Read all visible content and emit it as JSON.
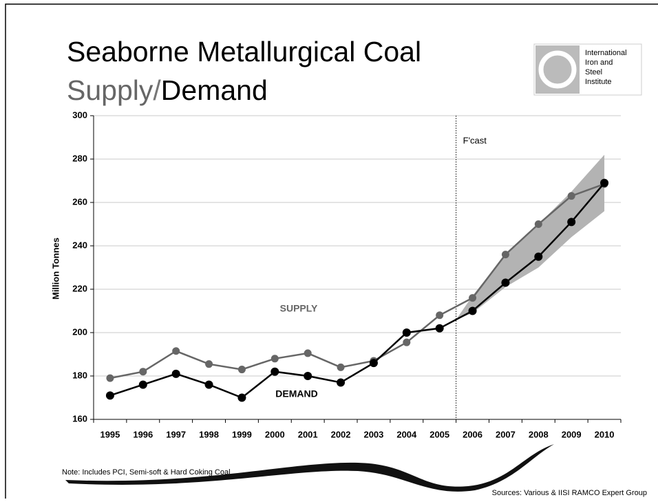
{
  "chart_data": {
    "type": "line",
    "title": "Seaborne Metallurgical Coal",
    "subtitle": {
      "supply": "Supply",
      "slash": "/",
      "demand": "Demand"
    },
    "y_label": "Million Tonnes",
    "categories": [
      "1995",
      "1996",
      "1997",
      "1998",
      "1999",
      "2000",
      "2001",
      "2002",
      "2003",
      "2004",
      "2005",
      "2006",
      "2007",
      "2008",
      "2009",
      "2010"
    ],
    "series": [
      {
        "name": "SUPPLY",
        "color": "#666666",
        "values": [
          179,
          182,
          191.5,
          185.5,
          183,
          188,
          190.5,
          184,
          187,
          195.5,
          208,
          216,
          236,
          250,
          263,
          268.5
        ]
      },
      {
        "name": "DEMAND",
        "color": "#000000",
        "values": [
          171,
          176,
          181,
          176,
          170,
          182,
          180,
          177,
          186,
          200,
          202,
          210,
          223,
          235,
          251,
          269
        ]
      }
    ],
    "forecast_band": {
      "color": "#b3b3b3",
      "upper": [
        null,
        null,
        null,
        null,
        null,
        null,
        null,
        null,
        null,
        null,
        null,
        217,
        236,
        250,
        265,
        282
      ],
      "lower": [
        null,
        null,
        null,
        null,
        null,
        null,
        null,
        null,
        null,
        null,
        null,
        209,
        221,
        230,
        244,
        256
      ]
    },
    "forecast_label": "F'cast",
    "ylim": [
      160,
      300
    ],
    "yticks": [
      160,
      180,
      200,
      220,
      240,
      260,
      280,
      300
    ],
    "grid": true,
    "logo": [
      "International",
      "Iron and",
      "Steel",
      "Institute"
    ],
    "note": "Note: Includes PCI, Semi-soft & Hard Coking Coal",
    "sources": "Sources: Various & IISI RAMCO Expert Group"
  }
}
